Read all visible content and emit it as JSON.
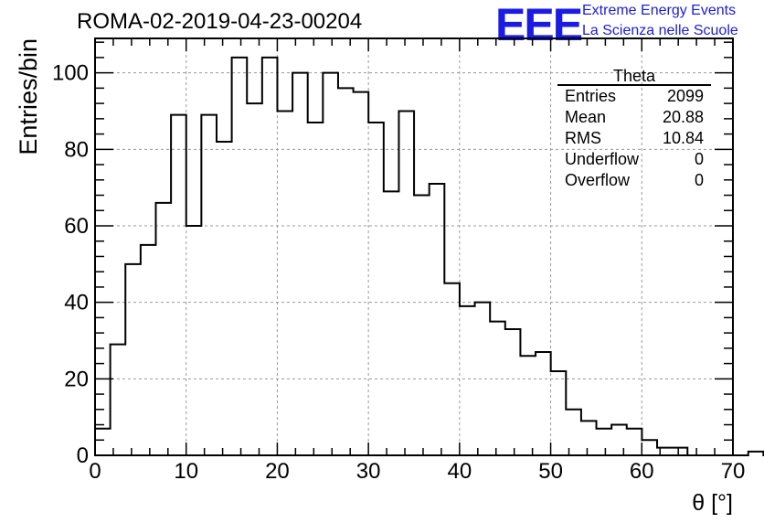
{
  "chart_data": {
    "type": "bar",
    "title": "ROMA-02-2019-04-23-00204",
    "xlabel": "θ [°]",
    "ylabel": "Entries/bin",
    "xlim": [
      0,
      70
    ],
    "ylim": [
      0,
      109
    ],
    "bin_width": 1.667,
    "bin_edges_start": 0,
    "values": [
      7,
      29,
      50,
      55,
      66,
      89,
      60,
      89,
      82,
      104,
      92,
      104,
      90,
      100,
      87,
      100,
      96,
      95,
      87,
      69,
      90,
      68,
      71,
      45,
      39,
      40,
      35,
      33,
      26,
      27,
      22,
      12,
      9,
      7,
      8,
      7,
      4,
      2,
      2,
      0,
      0,
      0,
      0,
      1,
      0
    ],
    "x_ticks": [
      "0",
      "10",
      "20",
      "30",
      "40",
      "50",
      "60",
      "70"
    ],
    "y_ticks": [
      "0",
      "20",
      "40",
      "60",
      "80",
      "100"
    ],
    "grid": true,
    "stats_box": {
      "title": "Theta",
      "rows": [
        {
          "label": "Entries",
          "value": "2099"
        },
        {
          "label": "Mean",
          "value": "20.88"
        },
        {
          "label": "RMS",
          "value": "10.84"
        },
        {
          "label": "Underflow",
          "value": "0"
        },
        {
          "label": "Overflow",
          "value": "0"
        }
      ]
    },
    "colors": {
      "line": "#000000",
      "grid": "#9a9a9a",
      "logo": "#1b1be6"
    }
  },
  "logo": {
    "mark": "EEE",
    "line1": "Extreme Energy Events",
    "line2": "La Scienza nelle Scuole"
  }
}
